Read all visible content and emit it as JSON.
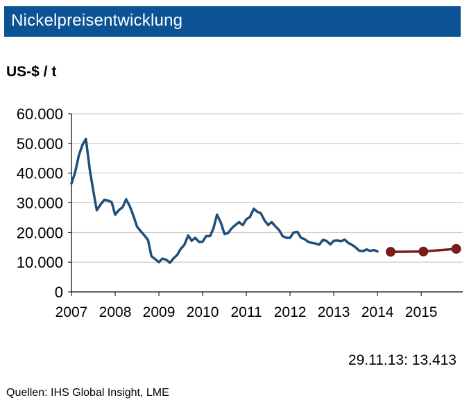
{
  "header": {
    "title": "Nickelpreisentwicklung"
  },
  "unit_label": "US-$ / t",
  "latest_value": "29.11.13: 13.413",
  "source": "Quellen:  IHS Global Insight, LME",
  "colors": {
    "title_bg": "#0b5394",
    "history_line": "#1f4e79",
    "forecast_line": "#7b1c1c",
    "grid": "#bfbfbf"
  },
  "chart_data": {
    "type": "line",
    "title": "Nickelpreisentwicklung",
    "ylabel": "US-$ / t",
    "xlabel": "",
    "ylim": [
      0,
      60000
    ],
    "xlim": [
      2007,
      2015.95
    ],
    "y_ticks": [
      0,
      10000,
      20000,
      30000,
      40000,
      50000,
      60000
    ],
    "y_tick_labels": [
      "0",
      "10.000",
      "20.000",
      "30.000",
      "40.000",
      "50.000",
      "60.000"
    ],
    "x_ticks": [
      2007,
      2008,
      2009,
      2010,
      2011,
      2012,
      2013,
      2014,
      2015
    ],
    "x_tick_labels": [
      "2007",
      "2008",
      "2009",
      "2010",
      "2011",
      "2012",
      "2013",
      "2014",
      "2015"
    ],
    "grid": "horizontal",
    "series": [
      {
        "style": "solid",
        "points": [
          [
            2007.0,
            36500
          ],
          [
            2007.08,
            40000
          ],
          [
            2007.17,
            46000
          ],
          [
            2007.25,
            49500
          ],
          [
            2007.33,
            51500
          ],
          [
            2007.42,
            41000
          ],
          [
            2007.5,
            34000
          ],
          [
            2007.58,
            27500
          ],
          [
            2007.67,
            29500
          ],
          [
            2007.75,
            31000
          ],
          [
            2007.83,
            30800
          ],
          [
            2007.92,
            30200
          ],
          [
            2008.0,
            26000
          ],
          [
            2008.08,
            27500
          ],
          [
            2008.17,
            28500
          ],
          [
            2008.25,
            31200
          ],
          [
            2008.33,
            29000
          ],
          [
            2008.42,
            25500
          ],
          [
            2008.5,
            22000
          ],
          [
            2008.58,
            20500
          ],
          [
            2008.67,
            19000
          ],
          [
            2008.75,
            17500
          ],
          [
            2008.83,
            12000
          ],
          [
            2008.92,
            11000
          ],
          [
            2009.0,
            10000
          ],
          [
            2009.08,
            11200
          ],
          [
            2009.17,
            10800
          ],
          [
            2009.25,
            9800
          ],
          [
            2009.33,
            11200
          ],
          [
            2009.42,
            12500
          ],
          [
            2009.5,
            14500
          ],
          [
            2009.58,
            15800
          ],
          [
            2009.67,
            19000
          ],
          [
            2009.75,
            17200
          ],
          [
            2009.83,
            18200
          ],
          [
            2009.92,
            16800
          ],
          [
            2010.0,
            16900
          ],
          [
            2010.08,
            18800
          ],
          [
            2010.17,
            18800
          ],
          [
            2010.25,
            21500
          ],
          [
            2010.33,
            26000
          ],
          [
            2010.42,
            23200
          ],
          [
            2010.5,
            19500
          ],
          [
            2010.58,
            19800
          ],
          [
            2010.67,
            21500
          ],
          [
            2010.75,
            22500
          ],
          [
            2010.83,
            23500
          ],
          [
            2010.92,
            22500
          ],
          [
            2011.0,
            24500
          ],
          [
            2011.08,
            25200
          ],
          [
            2011.17,
            28000
          ],
          [
            2011.25,
            27000
          ],
          [
            2011.33,
            26500
          ],
          [
            2011.42,
            24000
          ],
          [
            2011.5,
            22500
          ],
          [
            2011.58,
            23500
          ],
          [
            2011.67,
            22000
          ],
          [
            2011.75,
            20800
          ],
          [
            2011.83,
            18800
          ],
          [
            2011.92,
            18200
          ],
          [
            2012.0,
            18200
          ],
          [
            2012.08,
            20000
          ],
          [
            2012.17,
            20200
          ],
          [
            2012.25,
            18200
          ],
          [
            2012.33,
            17800
          ],
          [
            2012.42,
            16800
          ],
          [
            2012.5,
            16500
          ],
          [
            2012.58,
            16300
          ],
          [
            2012.67,
            15900
          ],
          [
            2012.75,
            17500
          ],
          [
            2012.83,
            17200
          ],
          [
            2012.92,
            16000
          ],
          [
            2013.0,
            17200
          ],
          [
            2013.08,
            17300
          ],
          [
            2013.17,
            17100
          ],
          [
            2013.25,
            17600
          ],
          [
            2013.33,
            16500
          ],
          [
            2013.42,
            15800
          ],
          [
            2013.5,
            15000
          ],
          [
            2013.58,
            13900
          ],
          [
            2013.67,
            13700
          ],
          [
            2013.75,
            14300
          ],
          [
            2013.83,
            13800
          ],
          [
            2013.92,
            14100
          ],
          [
            2014.0,
            13600
          ]
        ]
      },
      {
        "style": "markers",
        "points": [
          [
            2014.3,
            13500
          ],
          [
            2015.05,
            13600
          ],
          [
            2015.8,
            14500
          ]
        ]
      }
    ]
  }
}
